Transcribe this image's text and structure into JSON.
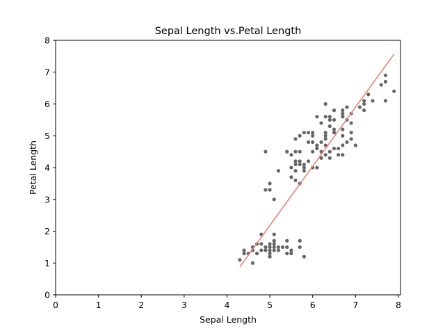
{
  "chart_data": {
    "type": "scatter",
    "title": "Sepal Length vs.Petal Length",
    "xlabel": "Sepal Length",
    "ylabel": "Petal Length",
    "xlim": [
      0,
      8.05
    ],
    "ylim": [
      0,
      8
    ],
    "xticks": [
      "0",
      "1",
      "2",
      "3",
      "4",
      "5",
      "6",
      "7",
      "8"
    ],
    "yticks": [
      "0",
      "1",
      "2",
      "3",
      "4",
      "5",
      "6",
      "7",
      "8"
    ],
    "grid": false,
    "colors": {
      "points": "#666666",
      "fit_line": "#f08070"
    },
    "series": [
      {
        "type": "scatter",
        "points": [
          [
            4.3,
            1.1
          ],
          [
            4.4,
            1.3
          ],
          [
            4.4,
            1.4
          ],
          [
            4.5,
            1.3
          ],
          [
            4.6,
            1.0
          ],
          [
            4.6,
            1.4
          ],
          [
            4.6,
            1.5
          ],
          [
            4.7,
            1.3
          ],
          [
            4.7,
            1.6
          ],
          [
            4.8,
            1.4
          ],
          [
            4.8,
            1.6
          ],
          [
            4.8,
            1.9
          ],
          [
            4.9,
            1.4
          ],
          [
            4.9,
            1.5
          ],
          [
            4.9,
            3.3
          ],
          [
            4.9,
            4.5
          ],
          [
            5.0,
            1.2
          ],
          [
            5.0,
            1.3
          ],
          [
            5.0,
            1.4
          ],
          [
            5.0,
            1.5
          ],
          [
            5.0,
            1.6
          ],
          [
            5.0,
            3.3
          ],
          [
            5.0,
            3.5
          ],
          [
            5.1,
            1.4
          ],
          [
            5.1,
            1.5
          ],
          [
            5.1,
            1.6
          ],
          [
            5.1,
            1.7
          ],
          [
            5.1,
            1.9
          ],
          [
            5.1,
            3.0
          ],
          [
            5.2,
            1.4
          ],
          [
            5.2,
            1.5
          ],
          [
            5.2,
            3.9
          ],
          [
            5.3,
            1.5
          ],
          [
            5.4,
            1.3
          ],
          [
            5.4,
            1.5
          ],
          [
            5.4,
            1.7
          ],
          [
            5.4,
            4.5
          ],
          [
            5.5,
            1.3
          ],
          [
            5.5,
            1.4
          ],
          [
            5.5,
            3.7
          ],
          [
            5.5,
            4.0
          ],
          [
            5.5,
            4.4
          ],
          [
            5.6,
            3.6
          ],
          [
            5.6,
            3.9
          ],
          [
            5.6,
            4.1
          ],
          [
            5.6,
            4.2
          ],
          [
            5.6,
            4.5
          ],
          [
            5.6,
            4.9
          ],
          [
            5.7,
            1.5
          ],
          [
            5.7,
            1.7
          ],
          [
            5.7,
            3.5
          ],
          [
            5.7,
            4.1
          ],
          [
            5.7,
            4.2
          ],
          [
            5.7,
            4.5
          ],
          [
            5.7,
            5.0
          ],
          [
            5.8,
            1.2
          ],
          [
            5.8,
            3.9
          ],
          [
            5.8,
            4.0
          ],
          [
            5.8,
            4.1
          ],
          [
            5.8,
            5.1
          ],
          [
            5.9,
            4.2
          ],
          [
            5.9,
            4.8
          ],
          [
            5.9,
            5.1
          ],
          [
            6.0,
            4.0
          ],
          [
            6.0,
            4.5
          ],
          [
            6.0,
            4.8
          ],
          [
            6.0,
            5.0
          ],
          [
            6.0,
            5.1
          ],
          [
            6.1,
            4.0
          ],
          [
            6.1,
            4.6
          ],
          [
            6.1,
            4.7
          ],
          [
            6.1,
            5.6
          ],
          [
            6.2,
            4.3
          ],
          [
            6.2,
            4.5
          ],
          [
            6.2,
            4.8
          ],
          [
            6.2,
            5.4
          ],
          [
            6.3,
            4.4
          ],
          [
            6.3,
            4.7
          ],
          [
            6.3,
            4.9
          ],
          [
            6.3,
            5.0
          ],
          [
            6.3,
            5.1
          ],
          [
            6.3,
            5.6
          ],
          [
            6.3,
            6.0
          ],
          [
            6.4,
            4.3
          ],
          [
            6.4,
            4.5
          ],
          [
            6.4,
            5.3
          ],
          [
            6.4,
            5.5
          ],
          [
            6.4,
            5.6
          ],
          [
            6.5,
            4.6
          ],
          [
            6.5,
            5.1
          ],
          [
            6.5,
            5.2
          ],
          [
            6.5,
            5.5
          ],
          [
            6.5,
            5.8
          ],
          [
            6.6,
            4.4
          ],
          [
            6.6,
            4.6
          ],
          [
            6.7,
            4.4
          ],
          [
            6.7,
            4.7
          ],
          [
            6.7,
            5.0
          ],
          [
            6.7,
            5.2
          ],
          [
            6.7,
            5.6
          ],
          [
            6.7,
            5.7
          ],
          [
            6.7,
            5.8
          ],
          [
            6.8,
            4.8
          ],
          [
            6.8,
            5.5
          ],
          [
            6.8,
            5.9
          ],
          [
            6.9,
            4.9
          ],
          [
            6.9,
            5.1
          ],
          [
            6.9,
            5.4
          ],
          [
            6.9,
            5.7
          ],
          [
            7.0,
            4.7
          ],
          [
            7.1,
            5.9
          ],
          [
            7.2,
            5.8
          ],
          [
            7.2,
            6.0
          ],
          [
            7.2,
            6.1
          ],
          [
            7.3,
            6.3
          ],
          [
            7.4,
            6.1
          ],
          [
            7.6,
            6.6
          ],
          [
            7.7,
            6.1
          ],
          [
            7.7,
            6.7
          ],
          [
            7.7,
            6.9
          ],
          [
            7.9,
            6.4
          ]
        ]
      },
      {
        "type": "line",
        "x": [
          4.3,
          7.9
        ],
        "y": [
          0.88,
          7.57
        ]
      }
    ]
  }
}
